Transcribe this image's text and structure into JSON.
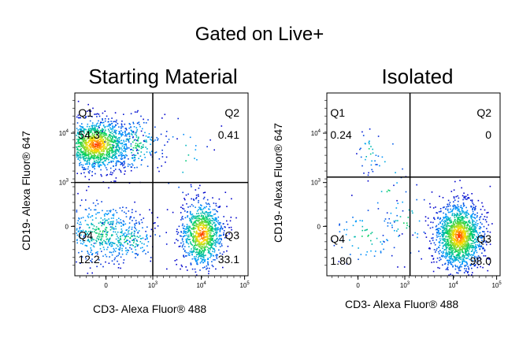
{
  "title": "Gated on Live+",
  "chart_data": [
    {
      "type": "scatter",
      "title": "Starting Material",
      "xlabel": "CD3- Alexa Fluor® 488",
      "ylabel": "CD19- Alexa Fluor® 647",
      "x_ticks": [
        "0",
        "10^3",
        "10^4",
        "10^5"
      ],
      "y_ticks": [
        "0",
        "10^3",
        "10^4"
      ],
      "quadrants": [
        {
          "name": "Q1",
          "value": "54.3"
        },
        {
          "name": "Q2",
          "value": "0.41"
        },
        {
          "name": "Q3",
          "value": "33.1"
        },
        {
          "name": "Q4",
          "value": "12.2"
        }
      ],
      "color_scale": [
        "#0000cc",
        "#00a0ff",
        "#00d060",
        "#ffe000",
        "#ff2000"
      ]
    },
    {
      "type": "scatter",
      "title": "Isolated",
      "xlabel": "CD3- Alexa Fluor® 488",
      "ylabel": "CD19- Alexa Fluor® 647",
      "x_ticks": [
        "0",
        "10^3",
        "10^4",
        "10^5"
      ],
      "y_ticks": [
        "0",
        "10^3",
        "10^4"
      ],
      "quadrants": [
        {
          "name": "Q1",
          "value": "0.24"
        },
        {
          "name": "Q2",
          "value": "0"
        },
        {
          "name": "Q3",
          "value": "98.0"
        },
        {
          "name": "Q4",
          "value": "1.80"
        }
      ],
      "color_scale": [
        "#0000cc",
        "#00a0ff",
        "#00d060",
        "#ffe000",
        "#ff2000"
      ]
    }
  ]
}
